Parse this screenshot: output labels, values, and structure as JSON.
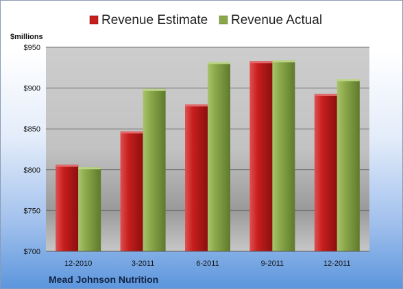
{
  "chart_data": {
    "type": "bar",
    "unit_label": "$millions",
    "categories": [
      "12-2010",
      "3-2011",
      "6-2011",
      "9-2011",
      "12-2011"
    ],
    "series": [
      {
        "name": "Revenue Estimate",
        "values": [
          806,
          847,
          880,
          933,
          893
        ],
        "color": "#cc1f1f"
      },
      {
        "name": "Revenue Actual",
        "values": [
          803,
          899,
          932,
          934,
          911
        ],
        "color": "#8aa84a"
      }
    ],
    "ylim": [
      700,
      950
    ],
    "yticks": [
      700,
      750,
      800,
      850,
      900,
      950
    ],
    "ytick_labels": [
      "$700",
      "$750",
      "$800",
      "$850",
      "$900",
      "$950"
    ],
    "grid": true,
    "legend_position": "top",
    "company": "Mead Johnson Nutrition"
  }
}
